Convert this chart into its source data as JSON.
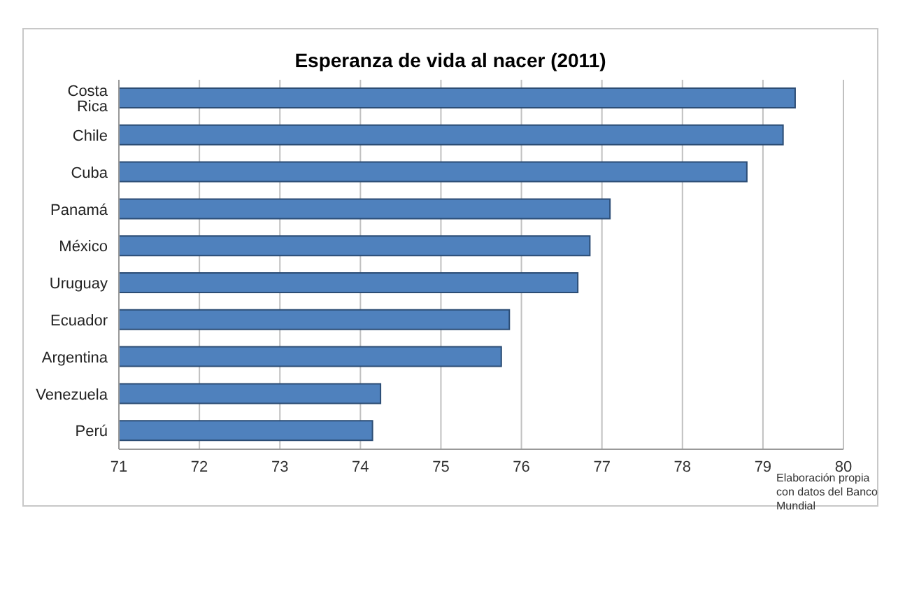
{
  "chart_data": {
    "type": "bar",
    "orientation": "horizontal",
    "title": "Esperanza de vida al nacer (2011)",
    "categories": [
      "Costa Rica",
      "Chile",
      "Cuba",
      "Panamá",
      "México",
      "Uruguay",
      "Ecuador",
      "Argentina",
      "Venezuela",
      "Perú"
    ],
    "values": [
      79.4,
      79.25,
      78.8,
      77.1,
      76.85,
      76.7,
      75.85,
      75.75,
      74.25,
      74.15
    ],
    "color": "#4f81bd",
    "xlim": [
      71,
      80
    ],
    "xticks": [
      71,
      72,
      73,
      74,
      75,
      76,
      77,
      78,
      79,
      80
    ],
    "grid": "x",
    "annotations": [
      "Elaboración propia con datos del Banco Mundial"
    ]
  }
}
